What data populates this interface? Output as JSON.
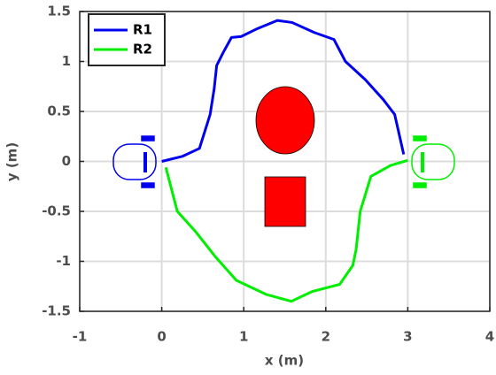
{
  "chart_data": {
    "type": "line",
    "xlabel": "x (m)",
    "ylabel": "y (m)",
    "xlim": [
      -1,
      4
    ],
    "ylim": [
      -1.5,
      1.5
    ],
    "xticks": [
      -1,
      0,
      1,
      2,
      3,
      4
    ],
    "yticks": [
      -1.5,
      -1,
      -0.5,
      0,
      0.5,
      1,
      1.5
    ],
    "grid": true,
    "legend": "northwest",
    "series": [
      {
        "name": "R1",
        "color": "#0000ee",
        "x": [
          0,
          0.25,
          0.46,
          0.59,
          0.64,
          0.67,
          0.75,
          0.85,
          0.97,
          1.17,
          1.41,
          1.59,
          1.86,
          2.1,
          2.24,
          2.48,
          2.7,
          2.84,
          2.89,
          2.95
        ],
        "values": [
          0,
          0.05,
          0.13,
          0.47,
          0.73,
          0.96,
          1.09,
          1.24,
          1.25,
          1.33,
          1.41,
          1.39,
          1.29,
          1.22,
          1.0,
          0.82,
          0.62,
          0.47,
          0.29,
          0.07
        ]
      },
      {
        "name": "R2",
        "color": "#00ee00",
        "x": [
          0.05,
          0.19,
          0.41,
          0.65,
          0.91,
          1.27,
          1.58,
          1.84,
          2.17,
          2.33,
          2.37,
          2.42,
          2.55,
          2.79,
          3.0
        ],
        "values": [
          -0.06,
          -0.5,
          -0.7,
          -0.95,
          -1.19,
          -1.33,
          -1.4,
          -1.3,
          -1.23,
          -1.04,
          -0.88,
          -0.5,
          -0.15,
          -0.04,
          0.01
        ]
      }
    ]
  }
}
